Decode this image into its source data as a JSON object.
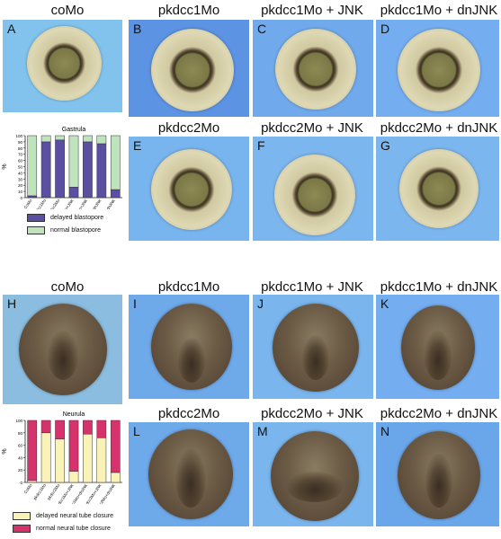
{
  "top_section": {
    "titles": [
      "coMo",
      "pkdcc1Mo",
      "pkdcc1Mo + JNK",
      "pkdcc1Mo + dnJNK",
      "pkdcc2Mo",
      "pkdcc2Mo + JNK",
      "pkdcc2Mo + dnJNK"
    ],
    "letters": [
      "A",
      "B",
      "C",
      "D",
      "E",
      "F",
      "G"
    ]
  },
  "bottom_section": {
    "titles": [
      "coMo",
      "pkdcc1Mo",
      "pkdcc1Mo + JNK",
      "pkdcc1Mo + dnJNK",
      "pkdcc2Mo",
      "pkdcc2Mo + JNK",
      "pkdcc2Mo + dnJNK"
    ],
    "letters": [
      "H",
      "I",
      "J",
      "K",
      "L",
      "M",
      "N"
    ]
  },
  "colors": {
    "gastrula_bg": "#7fb6ee",
    "delayed_blastopore": "#5a4fa0",
    "normal_blastopore": "#bfe3bc",
    "delayed_neural": "#f9f3b8",
    "normal_neural": "#d6336c"
  },
  "chart_data": [
    {
      "type": "bar",
      "stacked": true,
      "title": "Gastrula",
      "ylabel": "%",
      "ylim": [
        0,
        100
      ],
      "yticks": [
        "0",
        "10",
        "20",
        "30",
        "40",
        "50",
        "60",
        "70",
        "80",
        "90",
        "100"
      ],
      "categories": [
        "CoMo",
        "pkdcc1Mo",
        "pkdcc2Mo",
        "pkdcc1Mo+JNK",
        "pkdcc2Mo+JNK",
        "pkdcc1Mo+dnJNK",
        "pkdcc2Mo+dnJNK"
      ],
      "series": [
        {
          "name": "delayed blastopore",
          "values": [
            3,
            90,
            93,
            17,
            90,
            87,
            13
          ]
        },
        {
          "name": "normal blastopore",
          "values": [
            97,
            10,
            7,
            83,
            10,
            13,
            87
          ]
        }
      ]
    },
    {
      "type": "bar",
      "stacked": true,
      "title": "Neurula",
      "ylabel": "%",
      "ylim": [
        0,
        100
      ],
      "yticks": [
        "0",
        "20",
        "40",
        "60",
        "80",
        "100"
      ],
      "categories": [
        "CoMo",
        "pkdcc1Mo",
        "pkdcc2Mo",
        "pkdcc1Mo+JNK",
        "pkdcc1Mo+dnJNK",
        "pkdcc2Mo+JNK",
        "pkdcc2Mo+dnJNK"
      ],
      "series": [
        {
          "name": "delayed neural tube closure",
          "values": [
            3,
            80,
            70,
            18,
            78,
            72,
            16
          ]
        },
        {
          "name": "normal neural tube closure",
          "values": [
            97,
            20,
            30,
            82,
            22,
            28,
            84
          ]
        }
      ]
    }
  ]
}
